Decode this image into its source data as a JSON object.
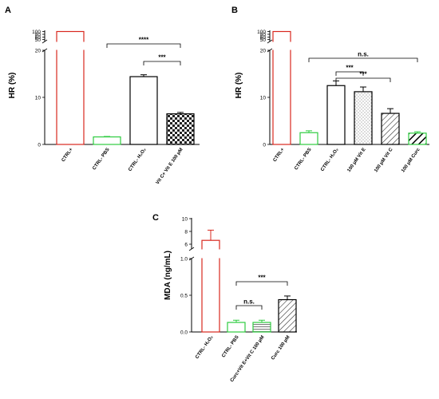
{
  "chart_data": [
    {
      "panel": "A",
      "type": "bar",
      "ylabel": "HR (%)",
      "categories": [
        "CTRL+",
        "CTRL- PBS",
        "CTRL- H2O2",
        "Vit C+ Vit E 100 μM"
      ],
      "category_labels": [
        "CTRL+",
        "CTRL- PBS",
        "CTRL- H₂O₂",
        "Vit C+ Vit E 100 μM"
      ],
      "values": [
        100,
        1.6,
        14.4,
        6.5
      ],
      "errors": [
        0,
        0.1,
        0.4,
        0.3
      ],
      "broken_axis": {
        "lower_ticks": [
          "0",
          "10",
          "20"
        ],
        "upper_ticks": [
          "50",
          "60",
          "80",
          "100"
        ],
        "lower_range": [
          0,
          20
        ]
      },
      "bar_colors": [
        "#d9281f",
        "#2ecc40",
        "#000000",
        "#000000"
      ],
      "bar_patterns": [
        "none",
        "none",
        "none",
        "checker"
      ],
      "significance": [
        {
          "from": "CTRL- PBS",
          "to": "Vit C+ Vit E 100 μM",
          "label": "****"
        },
        {
          "from": "CTRL- H2O2",
          "to": "Vit C+ Vit E 100 μM",
          "label": "***"
        }
      ]
    },
    {
      "panel": "B",
      "type": "bar",
      "ylabel": "HR  (%)",
      "categories": [
        "CTRL+",
        "CTRL- PBS",
        "CTRL- H2O2",
        "100 μM Vit E",
        "100 μM Vit C",
        "100 μM Curc"
      ],
      "category_labels": [
        "CTRL+",
        "CTRL- PBS",
        "CTRL- H₂O₂",
        "100 μM Vit E",
        "100 μM Vit C",
        "100 μM Curc"
      ],
      "values": [
        100,
        2.5,
        12.5,
        11.2,
        6.6,
        2.4
      ],
      "errors": [
        0,
        0.4,
        1.0,
        1.0,
        1.0,
        0.3
      ],
      "broken_axis": {
        "lower_ticks": [
          "0",
          "10",
          "20"
        ],
        "upper_ticks": [
          "50",
          "60",
          "80",
          "100"
        ],
        "lower_range": [
          0,
          20
        ]
      },
      "bar_colors": [
        "#d9281f",
        "#2ecc40",
        "#000000",
        "#000000",
        "#000000",
        "#2ecc40"
      ],
      "bar_patterns": [
        "none",
        "none",
        "none",
        "dots",
        "hatch",
        "thickhatch"
      ],
      "significance": [
        {
          "from": "CTRL- PBS",
          "to": "100 μM Curc",
          "label": "n.s."
        },
        {
          "from": "CTRL- H2O2",
          "to": "100 μM Vit C",
          "label": "***"
        },
        {
          "from": "CTRL- H2O2",
          "to": "100 μM Vit E",
          "label": "***"
        }
      ]
    },
    {
      "panel": "C",
      "type": "bar",
      "ylabel": "MDA (ng/mL)",
      "categories": [
        "CTRL- H2O2",
        "CTRL- PBS",
        "Curc+Vit E+Vit C 100 μM",
        "Curc 100 μM"
      ],
      "category_labels": [
        "CTRL- H₂O₂",
        "CTRL- PBS",
        "Curc+Vit E+Vit C 100 μM",
        "Curc 100 μM"
      ],
      "values": [
        6.6,
        0.13,
        0.13,
        0.44
      ],
      "errors": [
        1.6,
        0.03,
        0.03,
        0.05
      ],
      "broken_axis": {
        "lower_ticks": [
          "0.0",
          "0.5",
          "1.0"
        ],
        "upper_ticks": [
          "6",
          "8",
          "10"
        ],
        "lower_range": [
          0,
          1.0
        ],
        "upper_range": [
          5,
          10
        ]
      },
      "bar_colors": [
        "#d9281f",
        "#2ecc40",
        "#2ecc40",
        "#000000"
      ],
      "bar_patterns": [
        "none",
        "none",
        "hlines",
        "hatch"
      ],
      "significance": [
        {
          "from": "CTRL- PBS",
          "to": "Curc 100 μM",
          "label": "***"
        },
        {
          "from": "CTRL- PBS",
          "to": "Curc+Vit E+Vit C 100 μM",
          "label": "n.s."
        }
      ]
    }
  ]
}
